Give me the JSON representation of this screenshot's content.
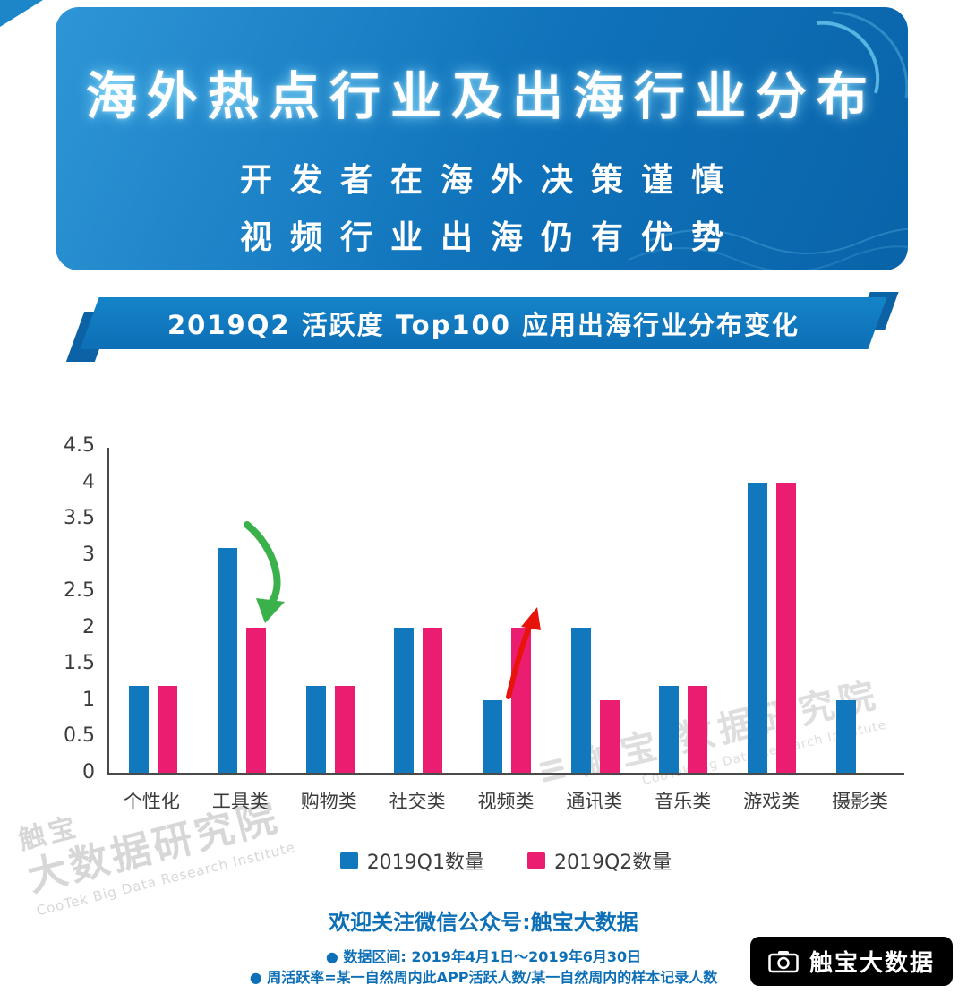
{
  "header": {
    "title": "海外热点行业及出海行业分布",
    "subtitle_line1": "开发者在海外决策谨慎",
    "subtitle_line2": "视频行业出海仍有优势"
  },
  "ribbon": {
    "title": "2019Q2 活跃度 Top100 应用出海行业分布变化"
  },
  "chart_data": {
    "type": "bar",
    "categories": [
      "个性化",
      "工具类",
      "购物类",
      "社交类",
      "视频类",
      "通讯类",
      "音乐类",
      "游戏类",
      "摄影类"
    ],
    "series": [
      {
        "name": "2019Q1数量",
        "color": "#1278be",
        "values": [
          1.2,
          3.1,
          1.2,
          2,
          1,
          2,
          1.2,
          4,
          1
        ]
      },
      {
        "name": "2019Q2数量",
        "color": "#ea1d70",
        "values": [
          1.2,
          2,
          1.2,
          2,
          2,
          1,
          1.2,
          4,
          0
        ]
      }
    ],
    "ylim": [
      0,
      4.5
    ],
    "yticks": [
      0,
      0.5,
      1,
      1.5,
      2,
      2.5,
      3,
      3.5,
      4,
      4.5
    ],
    "grid": false,
    "legend_position": "bottom",
    "annotations": [
      {
        "category": "工具类",
        "meaning": "decrease",
        "arrow": "down",
        "color": "#3bb14b"
      },
      {
        "category": "视频类",
        "meaning": "increase",
        "arrow": "up",
        "color": "#e8140c"
      }
    ]
  },
  "footer": {
    "line1": "欢迎关注微信公众号:触宝大数据",
    "line2": "● 数据区间: 2019年4月1日～2019年6月30日",
    "line3": "● 周活跃率=某一自然周内此APP活跃人数/某一自然周内的样本记录人数"
  },
  "watermark_left": {
    "line1": "触宝",
    "line2": "大数据研究院",
    "line3": "CooTek Big Data Research Institute"
  },
  "watermark_right": {
    "line1": "触宝 数据研究院",
    "line2": "CooTek Big Data Research Institute"
  },
  "logo": {
    "text": "触宝大数据"
  },
  "colors": {
    "banner_blue": "#0f72ba",
    "bar_blue": "#1278be",
    "bar_pink": "#ea1d70",
    "footer_blue": "#0d6fb6",
    "arrow_green": "#3bb14b",
    "arrow_red": "#e8140c"
  }
}
